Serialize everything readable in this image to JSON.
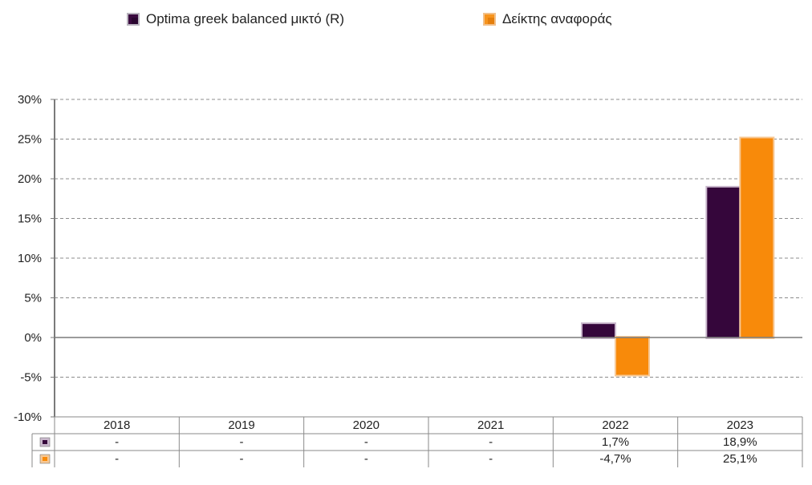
{
  "legend": {
    "series1": "Optima greek balanced μικτό (R)",
    "series2": "Δείκτης αναφοράς"
  },
  "colors": {
    "series1": "#35063b",
    "series2": "#f88a0a",
    "grid": "#8c8c8c",
    "axis": "#7a7a7a"
  },
  "chart_data": {
    "type": "bar",
    "categories": [
      "2018",
      "2019",
      "2020",
      "2021",
      "2022",
      "2023"
    ],
    "series": [
      {
        "name": "Optima greek balanced μικτό (R)",
        "values": [
          null,
          null,
          null,
          null,
          1.7,
          18.9
        ]
      },
      {
        "name": "Δείκτης αναφοράς",
        "values": [
          null,
          null,
          null,
          null,
          -4.7,
          25.1
        ]
      }
    ],
    "yticks": [
      "30%",
      "25%",
      "20%",
      "15%",
      "10%",
      "5%",
      "0%",
      "-5%",
      "-10%"
    ],
    "ylim": [
      -10,
      30
    ],
    "grid": true,
    "legend_position": "top",
    "table": {
      "rows": [
        {
          "series": "Optima greek balanced μικτό (R)",
          "cells": [
            "-",
            "-",
            "-",
            "-",
            "1,7%",
            "18,9%"
          ]
        },
        {
          "series": "Δείκτης αναφοράς",
          "cells": [
            "-",
            "-",
            "-",
            "-",
            "-4,7%",
            "25,1%"
          ]
        }
      ]
    }
  }
}
